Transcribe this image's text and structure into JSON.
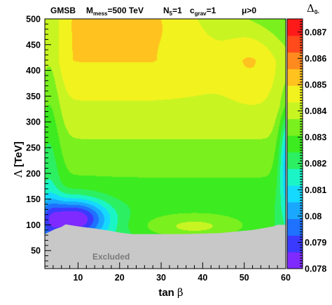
{
  "chart_data": {
    "type": "heatmap",
    "header": {
      "model": "GMSB",
      "mmess": {
        "base": "M",
        "sub": "mess",
        "rest": "=500 TeV"
      },
      "n5": {
        "base": "N",
        "sub": "5",
        "rest": "=1"
      },
      "cgrav": {
        "base": "c",
        "sub": "grav",
        "rest": "=1"
      },
      "mu": "μ>0"
    },
    "xlabel": {
      "text": "tan ",
      "symbol": "β"
    },
    "ylabel": {
      "symbol": "Λ",
      "text": " [TeV]"
    },
    "zlabel": {
      "symbol": "Δ",
      "sub": "0-"
    },
    "xlim": [
      2,
      60
    ],
    "ylim": [
      15,
      500
    ],
    "x_ticks": [
      "10",
      "20",
      "30",
      "40",
      "50",
      "60"
    ],
    "y_ticks": [
      "50",
      "100",
      "150",
      "200",
      "250",
      "300",
      "350",
      "400",
      "450",
      "500"
    ],
    "colorbar_ticks": [
      "0.078",
      "0.079",
      "0.08",
      "0.081",
      "0.082",
      "0.083",
      "0.084",
      "0.085",
      "0.086",
      "0.087"
    ],
    "zlim": [
      0.078,
      0.0875
    ],
    "excluded_label": "Excluded",
    "excluded_color": "#c8c8c8",
    "excluded_boundary": [
      [
        2,
        82
      ],
      [
        4.5,
        92
      ],
      [
        6,
        96
      ],
      [
        7,
        101
      ],
      [
        10,
        97
      ],
      [
        14,
        93
      ],
      [
        18,
        88
      ],
      [
        20,
        85
      ],
      [
        22,
        83
      ],
      [
        23,
        82
      ],
      [
        26,
        82
      ],
      [
        35,
        82
      ],
      [
        44,
        84
      ],
      [
        52,
        90
      ],
      [
        57,
        97
      ],
      [
        58,
        100
      ],
      [
        60,
        100
      ]
    ],
    "sample_values": [
      {
        "x": 6,
        "y": 110,
        "z": 0.0785
      },
      {
        "x": 15,
        "y": 150,
        "z": 0.0815
      },
      {
        "x": 25,
        "y": 250,
        "z": 0.083
      },
      {
        "x": 20,
        "y": 480,
        "z": 0.0852
      },
      {
        "x": 40,
        "y": 450,
        "z": 0.0845
      },
      {
        "x": 45,
        "y": 100,
        "z": 0.0835
      },
      {
        "x": 58,
        "y": 200,
        "z": 0.0812
      }
    ],
    "colors": [
      "#7f2bff",
      "#3a3aff",
      "#1e72ff",
      "#1aa8ff",
      "#15d9ff",
      "#1bf5c6",
      "#2cf062",
      "#3ceb20",
      "#7af01f",
      "#c8f522",
      "#f2f21e",
      "#ffc21e",
      "#ff8a1e",
      "#ff4a1c",
      "#ff1a1a"
    ]
  }
}
